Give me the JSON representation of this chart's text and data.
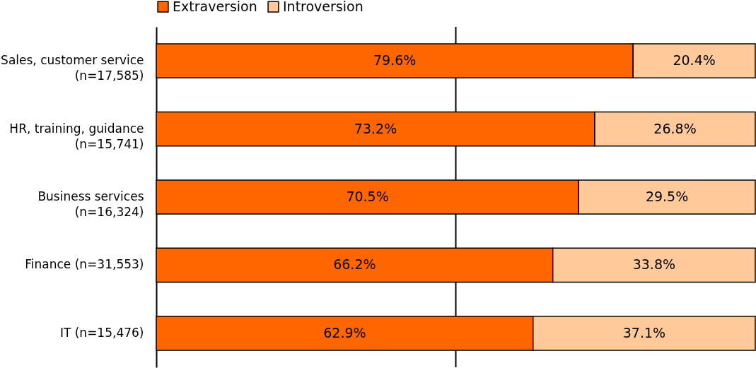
{
  "chart_data": {
    "type": "bar",
    "orientation": "horizontal",
    "stacked": true,
    "legend": "top",
    "tick_labels": "y",
    "categories": [
      "Sales, customer service\n(n=17,585)",
      "HR, training, guidance\n(n=15,741)",
      "Business services\n(n=16,324)",
      "Finance (n=31,553)",
      "IT (n=15,476)"
    ],
    "series": [
      {
        "name": "Extraversion",
        "color": "#ff6600",
        "values": [
          79.6,
          73.2,
          70.5,
          66.2,
          62.9
        ],
        "value_labels": [
          "79.6%",
          "73.2%",
          "70.5%",
          "66.2%",
          "62.9%"
        ]
      },
      {
        "name": "Introversion",
        "color": "#ffc999",
        "values": [
          20.4,
          26.8,
          29.5,
          33.8,
          37.1
        ],
        "value_labels": [
          "20.4%",
          "26.8%",
          "29.5%",
          "33.8%",
          "37.1%"
        ]
      }
    ],
    "ref_lines": [
      {
        "axis": "x",
        "value": 50,
        "color": "#000000"
      }
    ]
  }
}
